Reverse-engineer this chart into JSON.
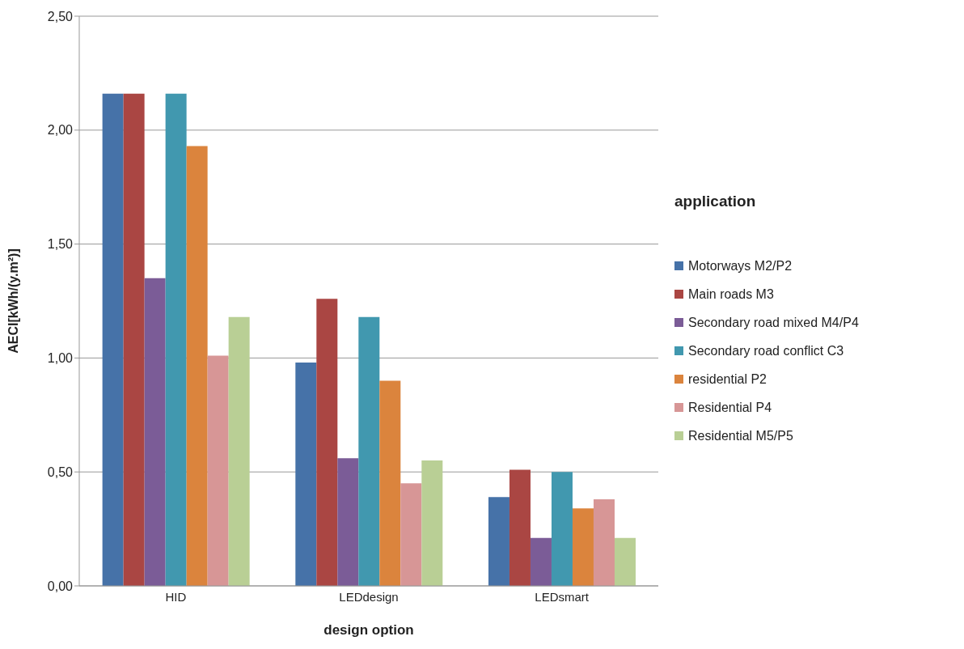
{
  "chart_data": {
    "type": "bar",
    "xlabel": "design option",
    "ylabel": "AECI[kWh/(y.m²)]",
    "legend_title": "application",
    "categories": [
      "HID",
      "LEDdesign",
      "LEDsmart"
    ],
    "series": [
      {
        "name": "Motorways M2/P2",
        "color": "#4672a8",
        "values": [
          2.16,
          0.98,
          0.39
        ]
      },
      {
        "name": "Main roads M3",
        "color": "#aa4643",
        "values": [
          2.16,
          1.26,
          0.51
        ]
      },
      {
        "name": "Secondary road mixed M4/P4",
        "color": "#7b5c97",
        "values": [
          1.35,
          0.56,
          0.21
        ]
      },
      {
        "name": "Secondary road conflict C3",
        "color": "#4198af",
        "values": [
          2.16,
          1.18,
          0.5
        ]
      },
      {
        "name": "residential P2",
        "color": "#db843d",
        "values": [
          1.93,
          0.9,
          0.34
        ]
      },
      {
        "name": "Residential P4",
        "color": "#d79696",
        "values": [
          1.01,
          0.45,
          0.38
        ]
      },
      {
        "name": "Residential M5/P5",
        "color": "#b9cf95",
        "values": [
          1.18,
          0.55,
          0.21
        ]
      }
    ],
    "ylim": [
      0,
      2.5
    ],
    "yticks": [
      {
        "value": 0,
        "label": "0,00"
      },
      {
        "value": 0.5,
        "label": "0,50"
      },
      {
        "value": 1,
        "label": "1,00"
      },
      {
        "value": 1.5,
        "label": "1,50"
      },
      {
        "value": 2,
        "label": "2,00"
      },
      {
        "value": 2.5,
        "label": "2,50"
      }
    ],
    "grid": "y",
    "legend": "right"
  }
}
